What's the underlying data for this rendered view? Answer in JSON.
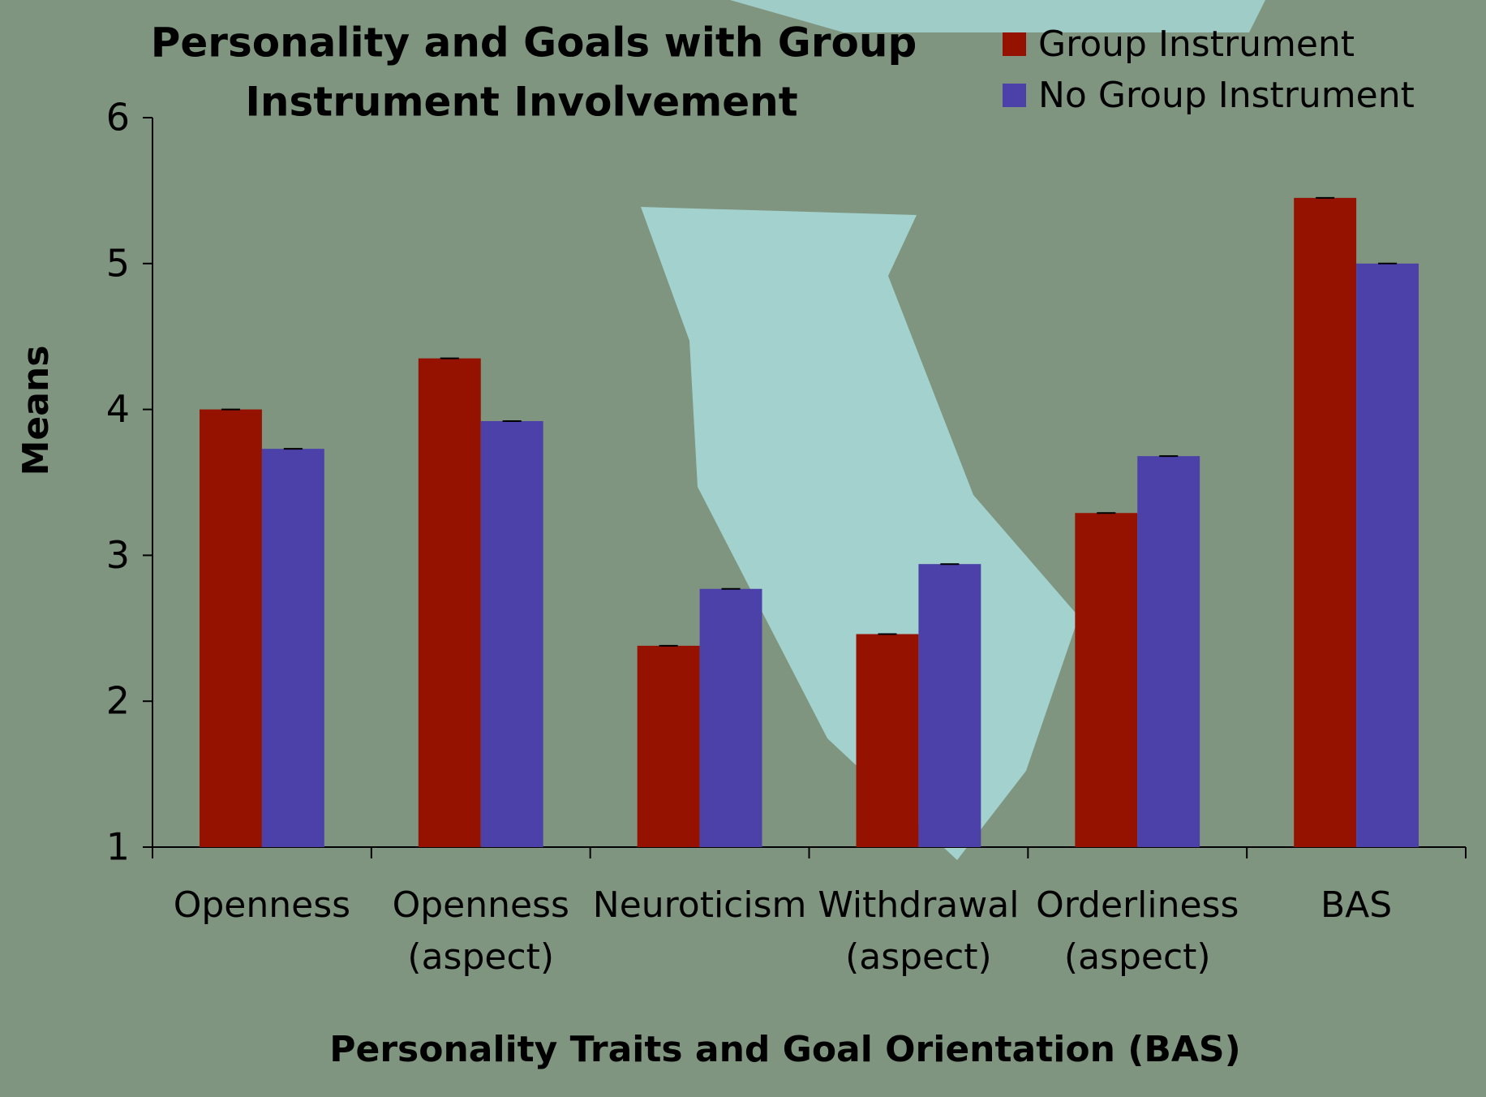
{
  "chart_data": {
    "type": "bar",
    "title": "Personality and Goals with Group Instrument Involvement",
    "x_label": "Personality Traits and Goal Orientation (BAS)",
    "y_label": "Means",
    "categories": [
      "Openness",
      "Openness\n(aspect)",
      "Neuroticism",
      "Withdrawal\n(aspect)",
      "Orderliness\n(aspect)",
      "BAS"
    ],
    "series": [
      {
        "name": "Group Instrument",
        "color": "#961200",
        "values": [
          4.0,
          4.35,
          2.38,
          2.46,
          3.29,
          5.45
        ]
      },
      {
        "name": "No Group Instrument",
        "color": "#4b41a9",
        "values": [
          3.73,
          3.92,
          2.77,
          2.94,
          3.68,
          5.0
        ]
      }
    ],
    "ylim": [
      1,
      6
    ],
    "yticks": [
      1,
      2,
      3,
      4,
      5,
      6
    ],
    "legend": "top-right"
  }
}
